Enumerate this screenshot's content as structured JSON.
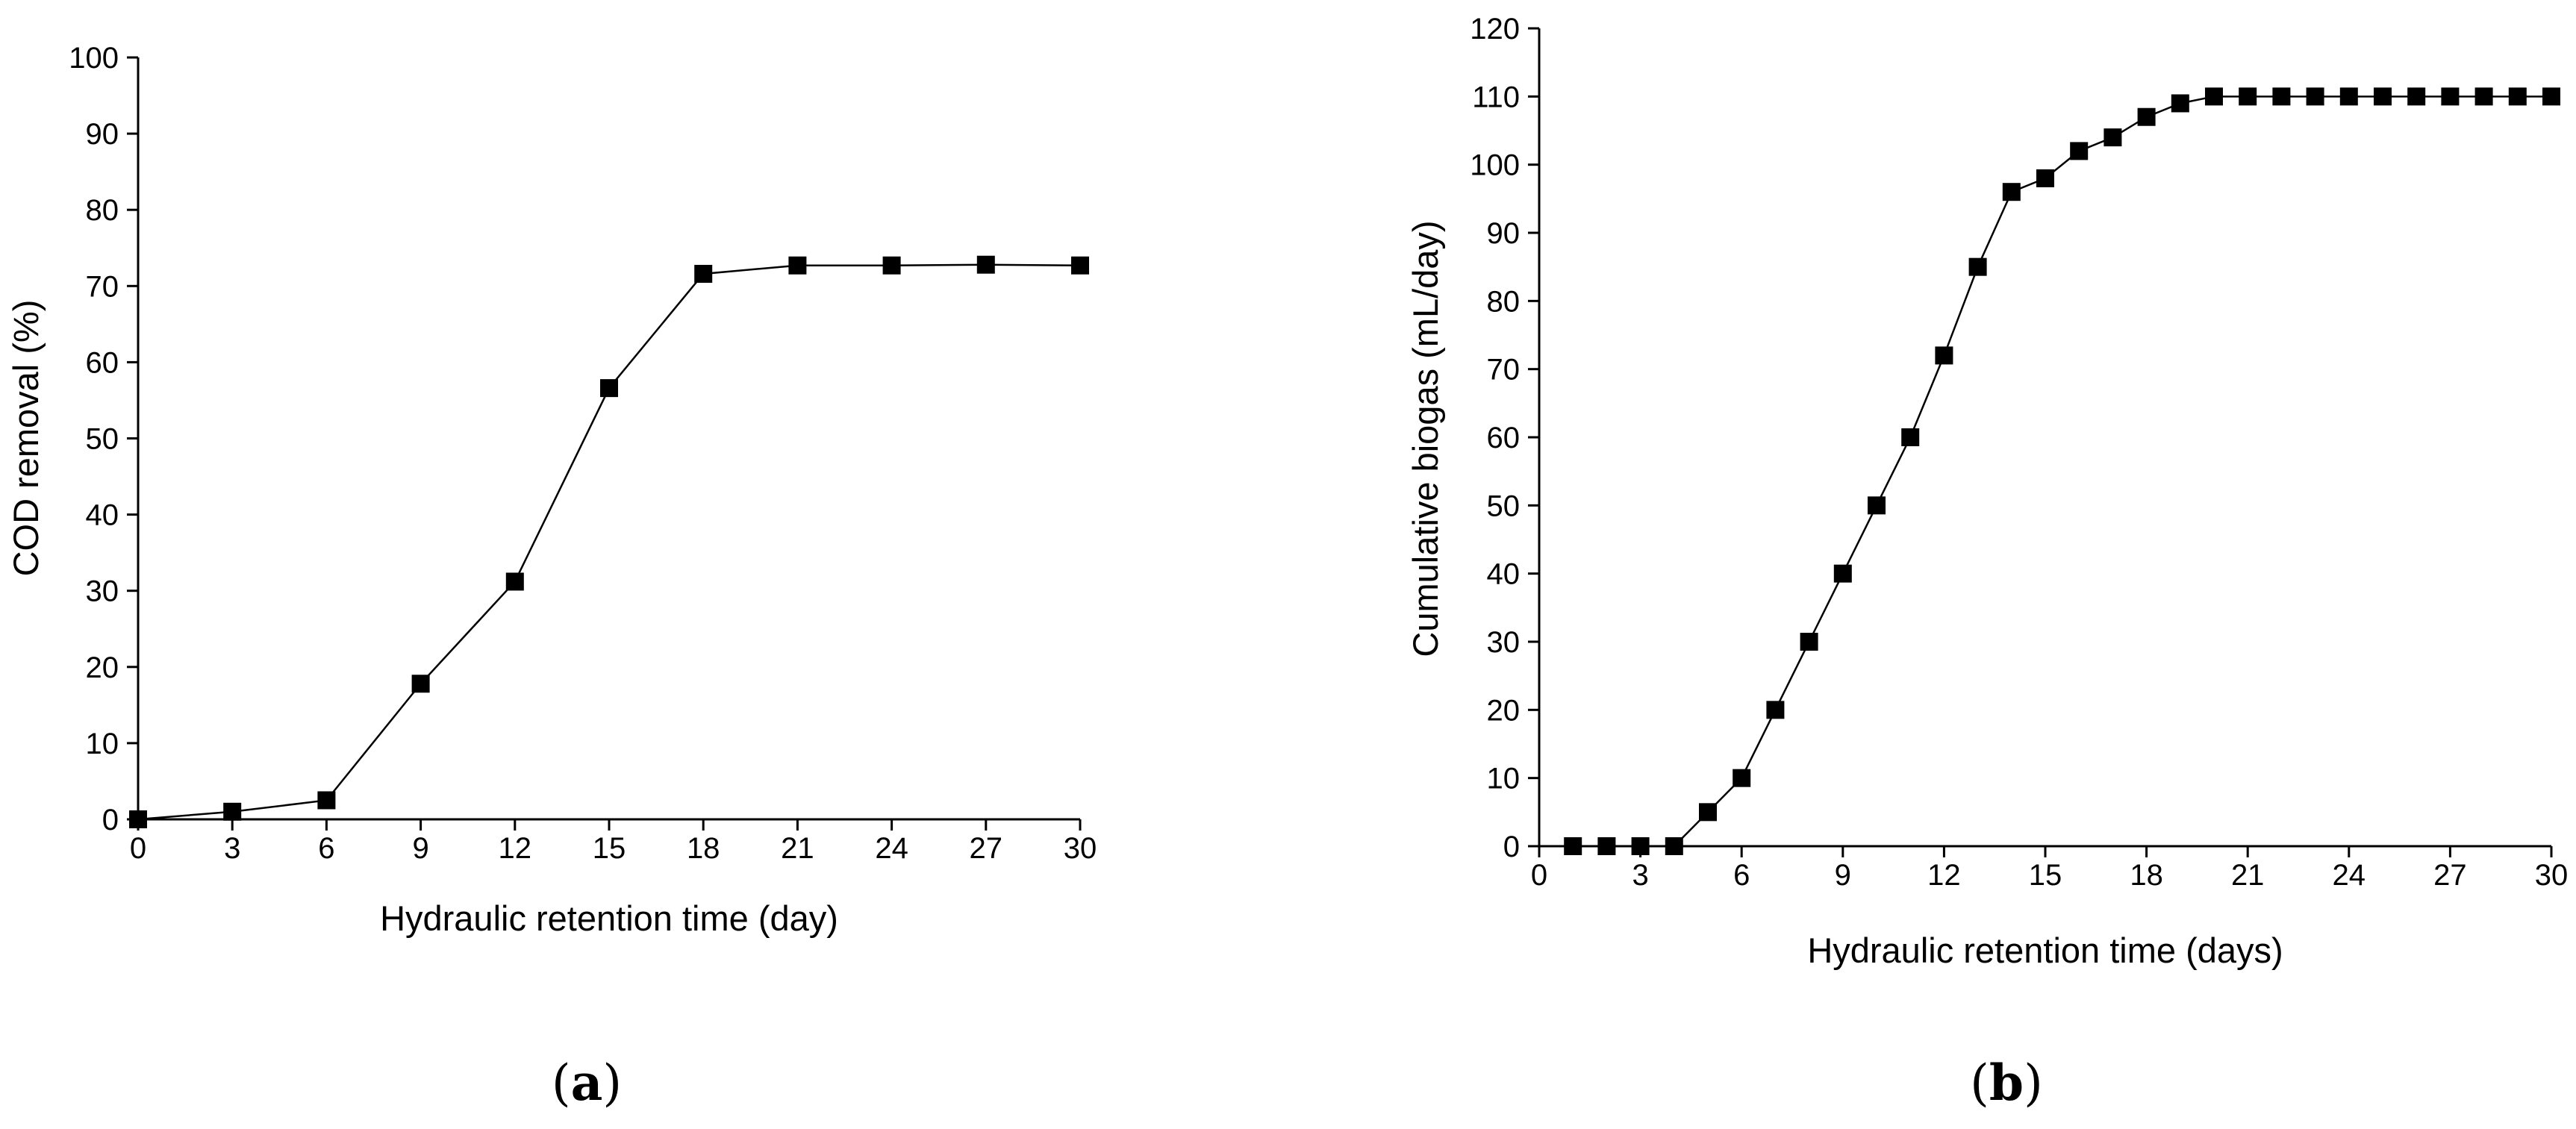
{
  "chart_data": [
    {
      "type": "line",
      "panel_label": "a",
      "title": "",
      "xlabel": "Hydraulic retention time (day)",
      "ylabel": "COD removal (%)",
      "xlim": [
        0,
        30
      ],
      "ylim": [
        0,
        100
      ],
      "xticks": [
        0,
        3,
        6,
        9,
        12,
        15,
        18,
        21,
        24,
        27,
        30
      ],
      "yticks": [
        0,
        10,
        20,
        30,
        40,
        50,
        60,
        70,
        80,
        90,
        100
      ],
      "series": [
        {
          "name": "COD removal",
          "marker": "square",
          "x": [
            0,
            3,
            6,
            9,
            12,
            15,
            18,
            21,
            24,
            27,
            30
          ],
          "y": [
            0,
            1,
            2.5,
            17.8,
            31.2,
            56.6,
            71.6,
            72.7,
            72.7,
            72.8,
            72.7
          ]
        }
      ]
    },
    {
      "type": "line",
      "panel_label": "b",
      "title": "",
      "xlabel": "Hydraulic retention time (days)",
      "ylabel": "Cumulative biogas (mL/day)",
      "xlim": [
        0,
        30
      ],
      "ylim": [
        0,
        120
      ],
      "xticks": [
        0,
        3,
        6,
        9,
        12,
        15,
        18,
        21,
        24,
        27,
        30
      ],
      "yticks": [
        0,
        10,
        20,
        30,
        40,
        50,
        60,
        70,
        80,
        90,
        100,
        110,
        120
      ],
      "series": [
        {
          "name": "Cumulative biogas",
          "marker": "square",
          "x": [
            1,
            2,
            3,
            4,
            5,
            6,
            7,
            8,
            9,
            10,
            11,
            12,
            13,
            14,
            15,
            16,
            17,
            18,
            19,
            20,
            21,
            22,
            23,
            24,
            25,
            26,
            27,
            28,
            29,
            30
          ],
          "y": [
            0,
            0,
            0,
            0,
            5,
            10,
            20,
            30,
            40,
            50,
            60,
            72,
            85,
            96,
            98,
            102,
            104,
            107,
            109,
            110,
            110,
            110,
            110,
            110,
            110,
            110,
            110,
            110,
            110,
            110
          ]
        }
      ]
    }
  ]
}
